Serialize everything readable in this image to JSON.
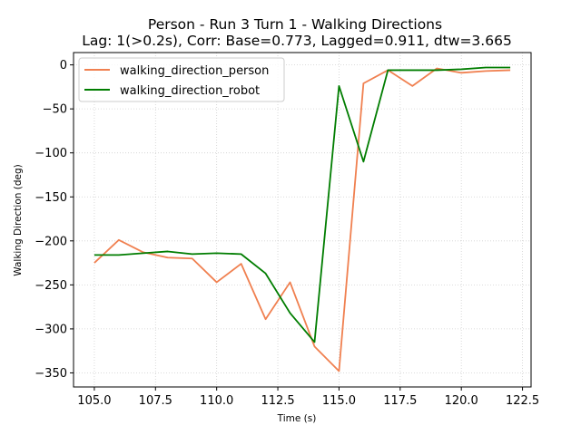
{
  "chart_data": {
    "type": "line",
    "title": "Person - Run 3 Turn 1 - Walking Directions",
    "subtitle": "Lag: 1(>0.2s), Corr: Base=0.773, Lagged=0.911, dtw=3.665",
    "xlabel": "Time (s)",
    "ylabel": "Walking Direction (deg)",
    "xlim": [
      104.15,
      122.85
    ],
    "ylim": [
      -366,
      14
    ],
    "xticks": [
      105.0,
      107.5,
      110.0,
      112.5,
      115.0,
      117.5,
      120.0,
      122.5
    ],
    "xtick_labels": [
      "105.0",
      "107.5",
      "110.0",
      "112.5",
      "115.0",
      "117.5",
      "120.0",
      "122.5"
    ],
    "yticks": [
      0,
      -50,
      -100,
      -150,
      -200,
      -250,
      -300,
      -350
    ],
    "ytick_labels": [
      "0",
      "−50",
      "−100",
      "−150",
      "−200",
      "−250",
      "−300",
      "−350"
    ],
    "grid": true,
    "legend_position": "top-left",
    "x": [
      105,
      106,
      107,
      108,
      109,
      110,
      111,
      112,
      113,
      114,
      115,
      116,
      117,
      118,
      119,
      120,
      121,
      122
    ],
    "series": [
      {
        "name": "walking_direction_person",
        "color": "#f08050",
        "values": [
          -225,
          -199,
          -213,
          -219,
          -220,
          -247,
          -226,
          -289,
          -247,
          -320,
          -348,
          -21,
          -6,
          -24,
          -4,
          -9,
          -7,
          -6
        ]
      },
      {
        "name": "walking_direction_robot",
        "color": "#007d00",
        "values": [
          -216,
          -216,
          -214,
          -212,
          -215,
          -214,
          -215,
          -237,
          -282,
          -315,
          -24,
          -110,
          -6,
          -6,
          -6,
          -5,
          -3,
          -3
        ]
      }
    ]
  }
}
